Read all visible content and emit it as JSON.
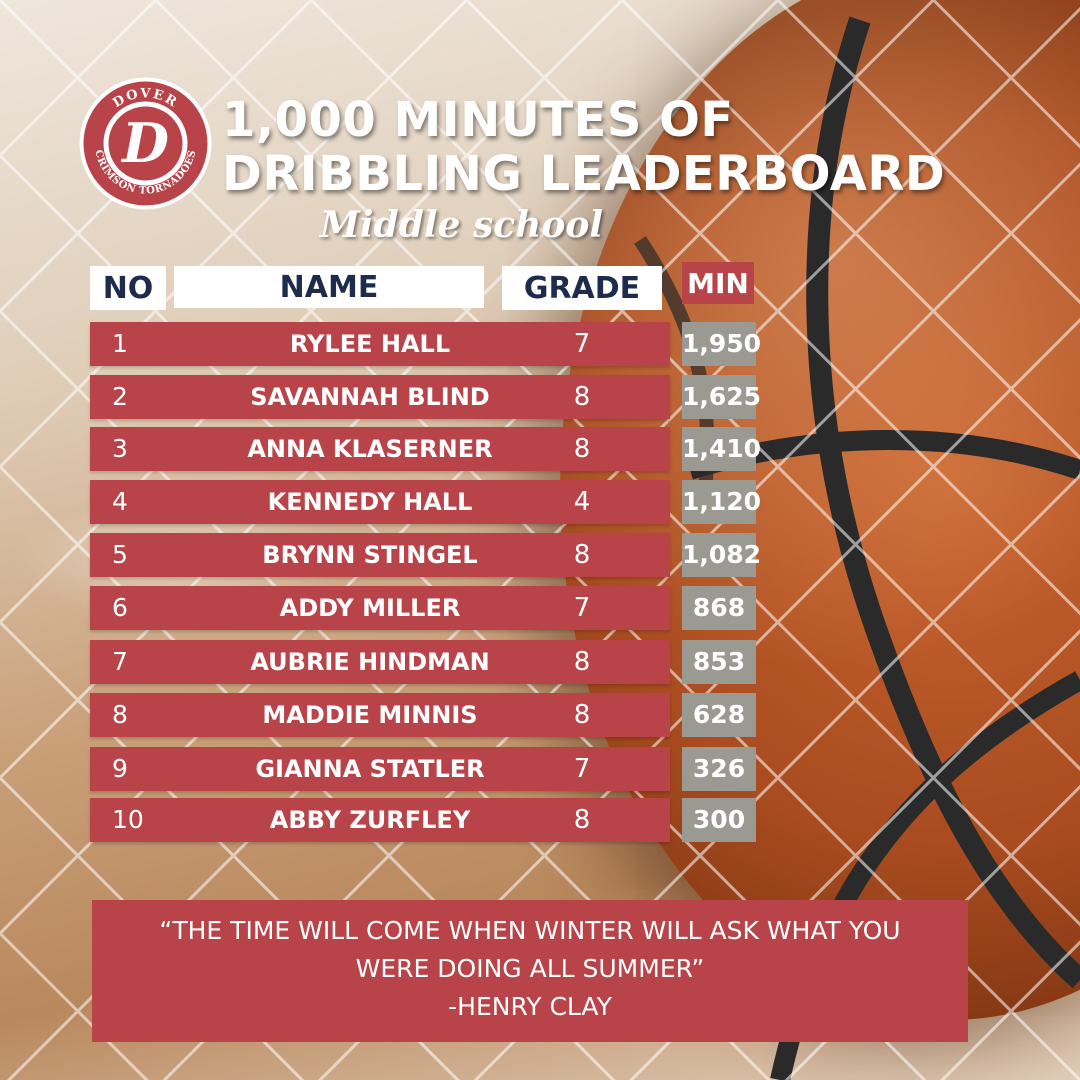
{
  "logo": {
    "top_text": "DOVER",
    "bottom_text": "CRIMSON TORNADOES",
    "letter": "D"
  },
  "title": {
    "line1": "1,000 MINUTES OF",
    "line2": "DRIBBLING  LEADERBOARD",
    "subtitle": "Middle school"
  },
  "table": {
    "headers": {
      "no": "NO",
      "name": "NAME",
      "grade": "GRADE",
      "min": "MIN"
    },
    "rows": [
      {
        "no": "1",
        "name": "RYLEE HALL",
        "grade": "7",
        "min": "1,950"
      },
      {
        "no": "2",
        "name": "SAVANNAH BLIND",
        "grade": "8",
        "min": "1,625"
      },
      {
        "no": "3",
        "name": "ANNA KLASERNER",
        "grade": "8",
        "min": "1,410"
      },
      {
        "no": "4",
        "name": "KENNEDY HALL",
        "grade": "4",
        "min": "1,120"
      },
      {
        "no": "5",
        "name": "BRYNN STINGEL",
        "grade": "8",
        "min": "1,082"
      },
      {
        "no": "6",
        "name": "ADDY MILLER",
        "grade": "7",
        "min": "868"
      },
      {
        "no": "7",
        "name": "AUBRIE HINDMAN",
        "grade": "8",
        "min": "853"
      },
      {
        "no": "8",
        "name": "MADDIE MINNIS",
        "grade": "8",
        "min": "628"
      },
      {
        "no": "9",
        "name": "GIANNA STATLER",
        "grade": "7",
        "min": "326"
      },
      {
        "no": "10",
        "name": "ABBY ZURFLEY",
        "grade": "8",
        "min": "300"
      }
    ]
  },
  "quote": {
    "line1": "“THE TIME WILL COME WHEN WINTER WILL ASK WHAT YOU",
    "line2": "WERE DOING ALL SUMMER”",
    "author": "-HENRY CLAY"
  },
  "colors": {
    "accent_red": "#b8444a",
    "navy": "#1d2c4d",
    "min_gray": "#9a9a92"
  },
  "icons": {
    "background": "basketball-icon",
    "logo": "dover-logo-icon"
  }
}
